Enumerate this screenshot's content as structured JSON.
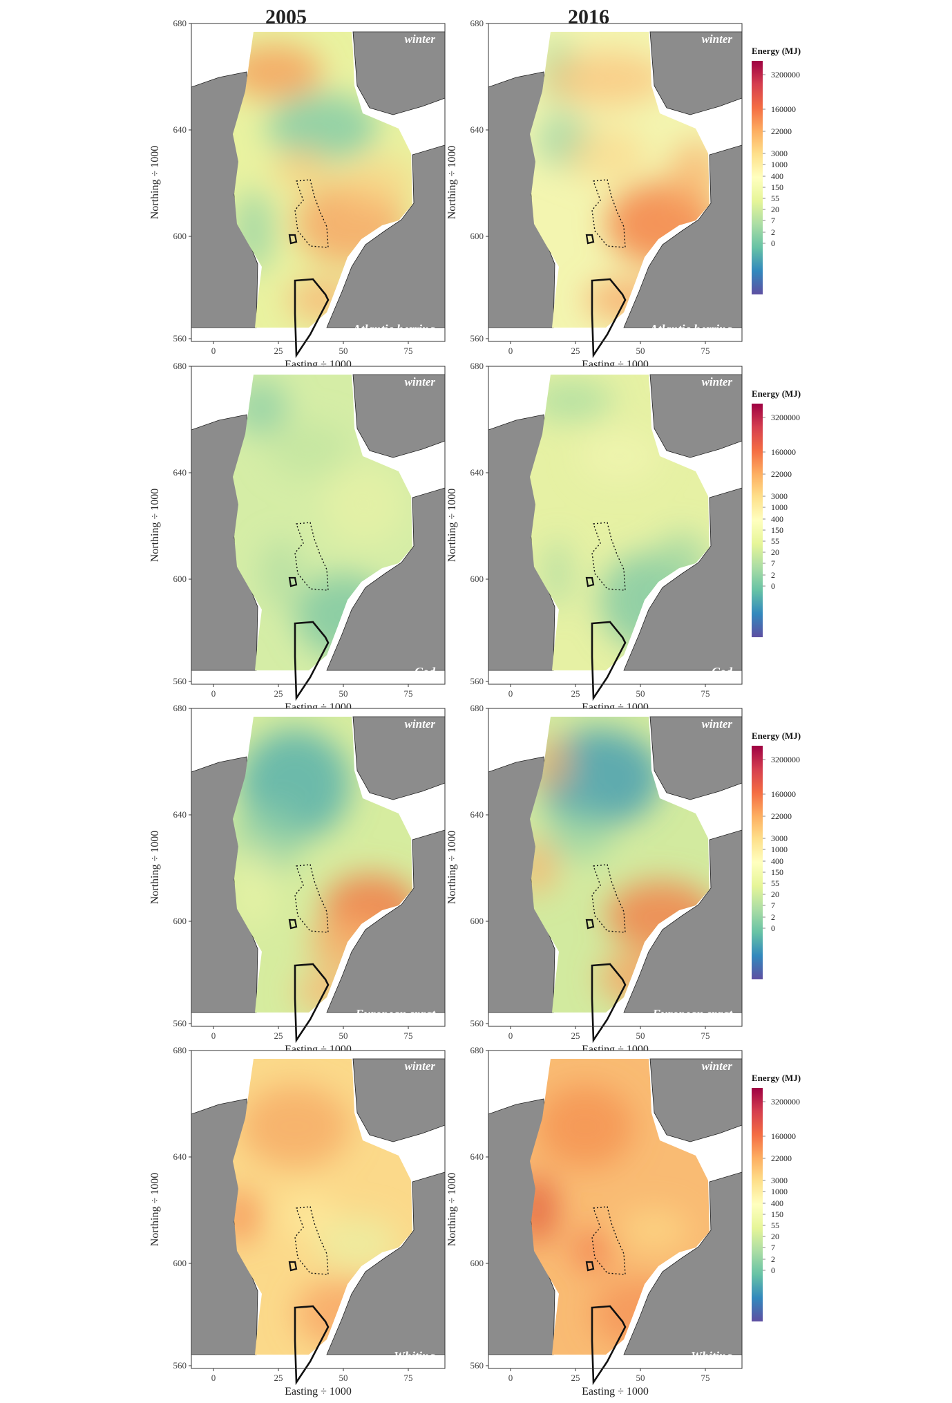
{
  "figure": {
    "columns": [
      "2005",
      "2016"
    ],
    "axes": {
      "xlabel": "Easting ÷ 1000",
      "ylabel": "Northing ÷ 1000",
      "xticks": [
        "0",
        "25",
        "50",
        "75"
      ],
      "yticks": [
        "560",
        "600",
        "640",
        "680"
      ]
    },
    "season": "winter",
    "rows": [
      {
        "species": "Atlantic herring",
        "panels": [
          {
            "year": "2005",
            "pattern": "herring-2005"
          },
          {
            "year": "2016",
            "pattern": "herring-2016"
          }
        ]
      },
      {
        "species": "Cod",
        "panels": [
          {
            "year": "2005",
            "pattern": "cod-2005"
          },
          {
            "year": "2016",
            "pattern": "cod-2016"
          }
        ]
      },
      {
        "species": "European sprat",
        "panels": [
          {
            "year": "2005",
            "pattern": "sprat-2005"
          },
          {
            "year": "2016",
            "pattern": "sprat-2016"
          }
        ]
      },
      {
        "species": "Whiting",
        "panels": [
          {
            "year": "2005",
            "pattern": "whiting-2005"
          },
          {
            "year": "2016",
            "pattern": "whiting-2016"
          }
        ]
      }
    ],
    "legend": {
      "title": "Energy (MJ)",
      "ticks": [
        "3200000",
        "160000",
        "22000",
        "3000",
        "1000",
        "400",
        "150",
        "55",
        "20",
        "7",
        "2",
        "0"
      ],
      "colors": [
        "#9e0142",
        "#d53e4f",
        "#f46d43",
        "#fdae61",
        "#fee08b",
        "#ffffbf",
        "#e6f598",
        "#abdda4",
        "#66c2a5",
        "#3288bd",
        "#5e4fa2"
      ]
    }
  }
}
